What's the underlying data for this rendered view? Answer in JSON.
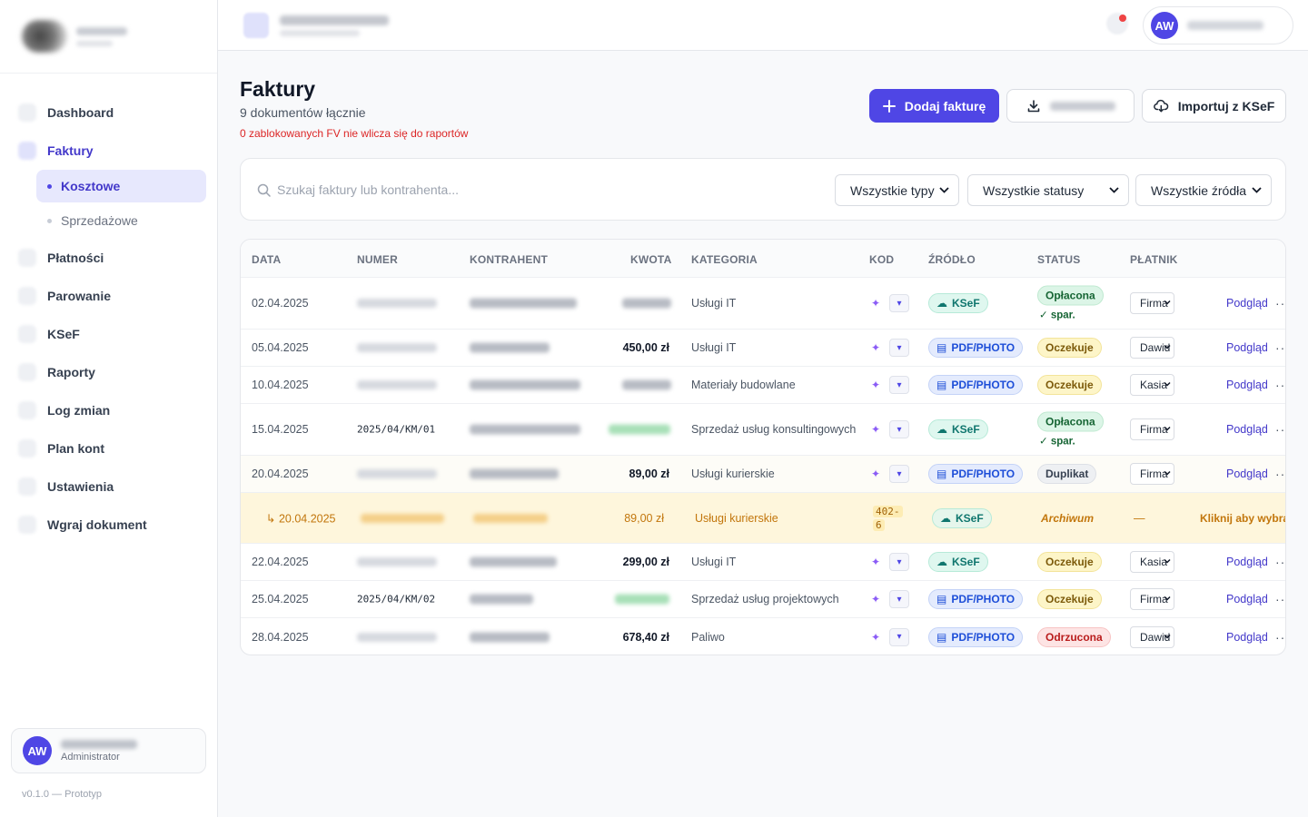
{
  "sidebar": {
    "nav": [
      {
        "label": "Dashboard"
      },
      {
        "label": "Faktury"
      },
      {
        "label": "Płatności"
      },
      {
        "label": "Parowanie"
      },
      {
        "label": "KSeF"
      },
      {
        "label": "Raporty"
      },
      {
        "label": "Log zmian"
      },
      {
        "label": "Plan kont"
      },
      {
        "label": "Ustawienia"
      },
      {
        "label": "Wgraj dokument"
      }
    ],
    "subnav": [
      {
        "label": "Kosztowe"
      },
      {
        "label": "Sprzedażowe"
      }
    ],
    "user": {
      "initials": "AW",
      "role": "Administrator"
    },
    "version": "v0.1.0 — Prototyp"
  },
  "topbar": {
    "user_initials": "AW"
  },
  "header": {
    "title": "Faktury",
    "subtitle": "9 dokumentów łącznie",
    "warning": "0 zablokowanych FV nie wlicza się do raportów",
    "add_button": "Dodaj fakturę",
    "import_button": "Importuj z KSeF"
  },
  "filters": {
    "search_placeholder": "Szukaj faktury lub kontrahenta...",
    "type_select": "Wszystkie typy",
    "status_select": "Wszystkie statusy",
    "source_select": "Wszystkie źródła"
  },
  "table": {
    "columns": [
      "DATA",
      "NUMER",
      "KONTRAHENT",
      "KWOTA",
      "KATEGORIA",
      "KOD",
      "ŹRÓDŁO",
      "STATUS",
      "PŁATNIK"
    ],
    "view_label": "Podgląd",
    "more_label": "···",
    "rows": [
      {
        "date": "02.04.2025",
        "number": "",
        "amount": "",
        "category": "Usługi IT",
        "source": "KSeF",
        "status": "Opłacona",
        "note": "✓ spar.",
        "payer": "Firma"
      },
      {
        "date": "05.04.2025",
        "number": "",
        "amount": "450,00 zł",
        "category": "Usługi IT",
        "source": "PDF/PHOTO",
        "status": "Oczekuje",
        "note": "",
        "payer": "Dawid"
      },
      {
        "date": "10.04.2025",
        "number": "",
        "amount": "",
        "category": "Materiały budowlane",
        "source": "PDF/PHOTO",
        "status": "Oczekuje",
        "note": "",
        "payer": "Kasia"
      },
      {
        "date": "15.04.2025",
        "number": "2025/04/KM/01",
        "amount": "",
        "category": "Sprzedaż usług konsultingowych",
        "source": "KSeF",
        "status": "Opłacona",
        "note": "✓ spar.",
        "payer": "Firma"
      },
      {
        "date": "20.04.2025",
        "number": "",
        "amount": "89,00 zł",
        "category": "Usługi kurierskie",
        "source": "PDF/PHOTO",
        "status": "Duplikat",
        "note": "",
        "payer": "Firma"
      },
      {
        "date": "↳ 20.04.2025",
        "number": "",
        "amount": "89,00 zł",
        "category": "Usługi kurierskie",
        "code1": "402-",
        "code2": "6",
        "source": "KSeF",
        "status": "Archiwum",
        "dash": "—",
        "action": "Kliknij aby wybrać"
      },
      {
        "date": "22.04.2025",
        "number": "",
        "amount": "299,00 zł",
        "category": "Usługi IT",
        "source": "KSeF",
        "status": "Oczekuje",
        "note": "",
        "payer": "Kasia"
      },
      {
        "date": "25.04.2025",
        "number": "2025/04/KM/02",
        "amount": "",
        "category": "Sprzedaż usług projektowych",
        "source": "PDF/PHOTO",
        "status": "Oczekuje",
        "note": "",
        "payer": "Firma"
      },
      {
        "date": "28.04.2025",
        "number": "",
        "amount": "678,40 zł",
        "category": "Paliwo",
        "source": "PDF/PHOTO",
        "status": "Odrzucona",
        "note": "",
        "payer": "Dawid"
      }
    ]
  },
  "colors": {
    "accent": "#4f46e5",
    "danger": "#dc2626",
    "duplicate_bg": "#fef6dc"
  }
}
